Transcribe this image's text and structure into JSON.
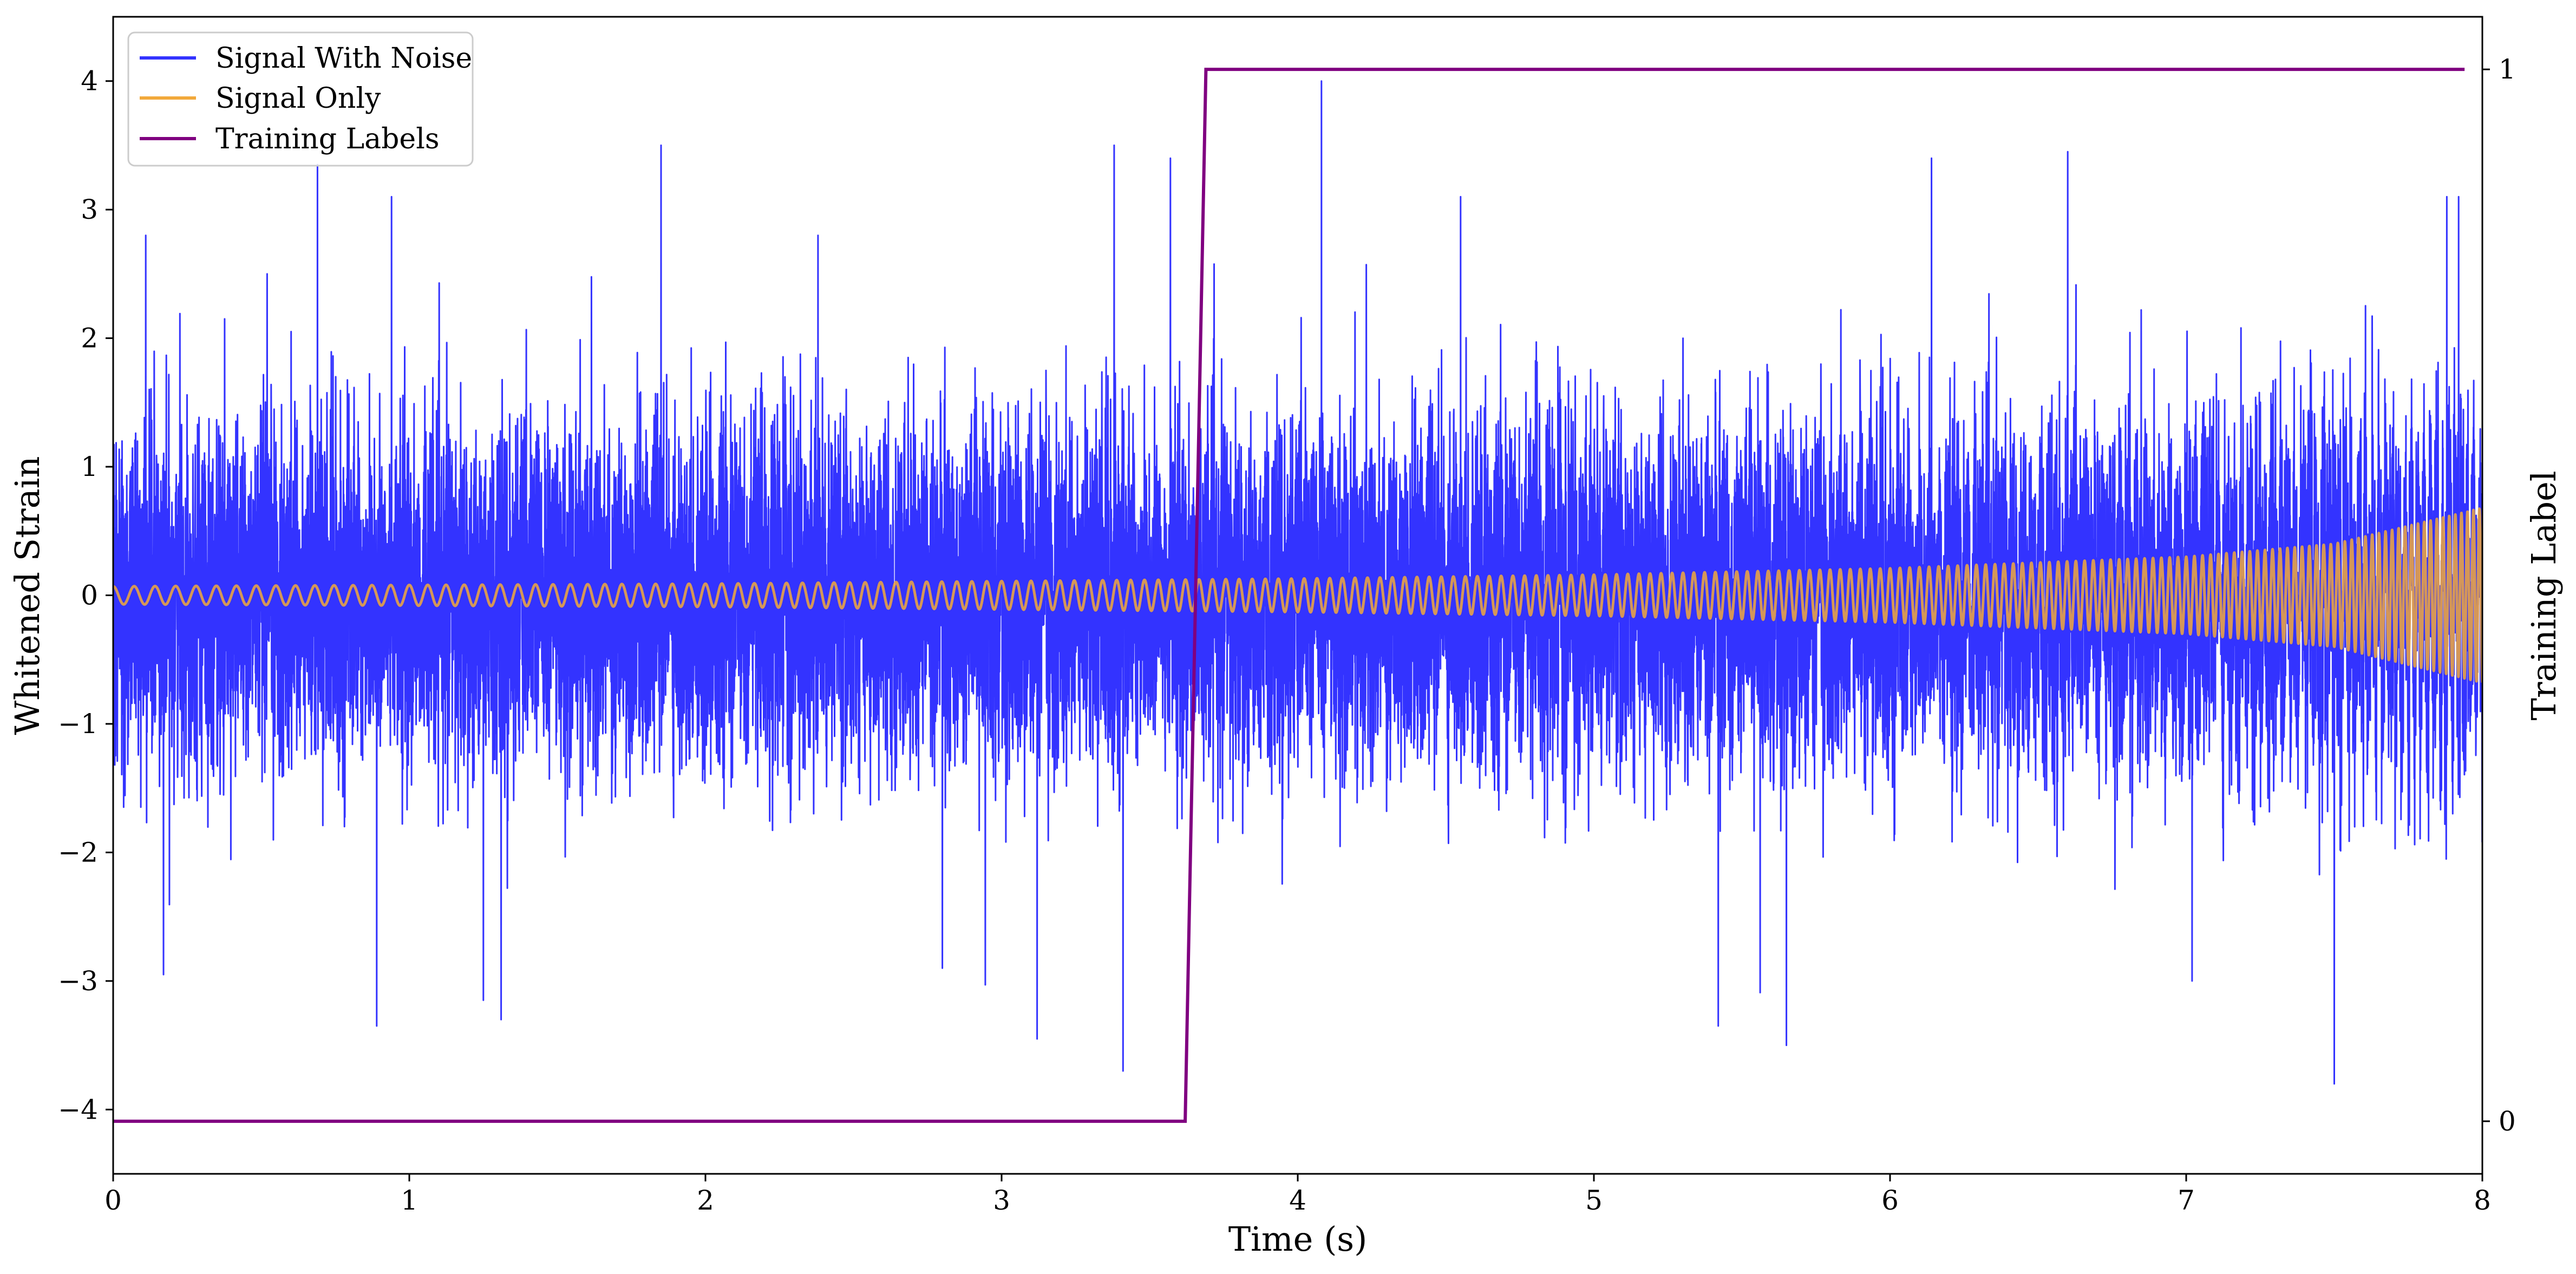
{
  "chart_data": {
    "type": "line",
    "title": "",
    "xlabel": "Time (s)",
    "ylabel": "Whitened Strain",
    "y2label": "Training Label",
    "xlim": [
      0,
      8
    ],
    "ylim": [
      -4.5,
      4.5
    ],
    "y2lim": [
      -0.05,
      1.05
    ],
    "x_ticks": [
      0,
      1,
      2,
      3,
      4,
      5,
      6,
      7,
      8
    ],
    "y_ticks": [
      -4,
      -3,
      -2,
      -1,
      0,
      1,
      2,
      3,
      4
    ],
    "y2_ticks": [
      0,
      1
    ],
    "tick_labels": {
      "x": [
        "0",
        "1",
        "2",
        "3",
        "4",
        "5",
        "6",
        "7",
        "8"
      ],
      "y": [
        "−4",
        "−3",
        "−2",
        "−1",
        "0",
        "1",
        "2",
        "3",
        "4"
      ],
      "y2": [
        "0",
        "1"
      ]
    },
    "grid": false,
    "legend_position": "upper-left",
    "series": [
      {
        "name": "Signal With Noise",
        "color": "#3333ff",
        "axis": "left",
        "description_stats": {
          "std": 0.65,
          "min": -3.8,
          "max": 4.0
        },
        "notable_peaks": [
          {
            "x": 0.03,
            "y": 1.2
          },
          {
            "x": 0.11,
            "y": 2.8
          },
          {
            "x": 0.17,
            "y": -2.95
          },
          {
            "x": 0.52,
            "y": 2.5
          },
          {
            "x": 0.69,
            "y": 3.35
          },
          {
            "x": 0.89,
            "y": -3.35
          },
          {
            "x": 0.94,
            "y": 3.1
          },
          {
            "x": 1.25,
            "y": -3.15
          },
          {
            "x": 1.31,
            "y": -3.3
          },
          {
            "x": 1.85,
            "y": 3.5
          },
          {
            "x": 2.38,
            "y": 2.8
          },
          {
            "x": 2.8,
            "y": -2.9
          },
          {
            "x": 3.12,
            "y": -3.45
          },
          {
            "x": 3.38,
            "y": 3.5
          },
          {
            "x": 3.41,
            "y": -3.7
          },
          {
            "x": 3.57,
            "y": 3.4
          },
          {
            "x": 4.08,
            "y": 4.0
          },
          {
            "x": 4.55,
            "y": 3.1
          },
          {
            "x": 5.42,
            "y": -3.35
          },
          {
            "x": 5.65,
            "y": -3.5
          },
          {
            "x": 6.14,
            "y": 3.4
          },
          {
            "x": 6.6,
            "y": 3.45
          },
          {
            "x": 7.02,
            "y": -3.0
          },
          {
            "x": 7.5,
            "y": -3.8
          },
          {
            "x": 7.88,
            "y": 3.1
          },
          {
            "x": 7.92,
            "y": 3.1
          }
        ]
      },
      {
        "name": "Signal Only",
        "color": "#f2a93b",
        "axis": "left",
        "model": "chirp",
        "x": [
          0,
          1,
          2,
          3,
          4,
          5,
          6,
          7,
          7.5,
          8
        ],
        "amplitude": [
          0.07,
          0.08,
          0.09,
          0.11,
          0.13,
          0.16,
          0.21,
          0.3,
          0.4,
          0.68
        ],
        "frequency_hz": [
          14,
          16,
          18,
          20,
          23,
          26,
          30,
          36,
          42,
          50
        ]
      },
      {
        "name": "Training Labels",
        "color": "#800080",
        "axis": "right",
        "x": [
          0,
          3.62,
          3.69,
          7.94
        ],
        "y": [
          0,
          0,
          1,
          1
        ]
      }
    ]
  }
}
